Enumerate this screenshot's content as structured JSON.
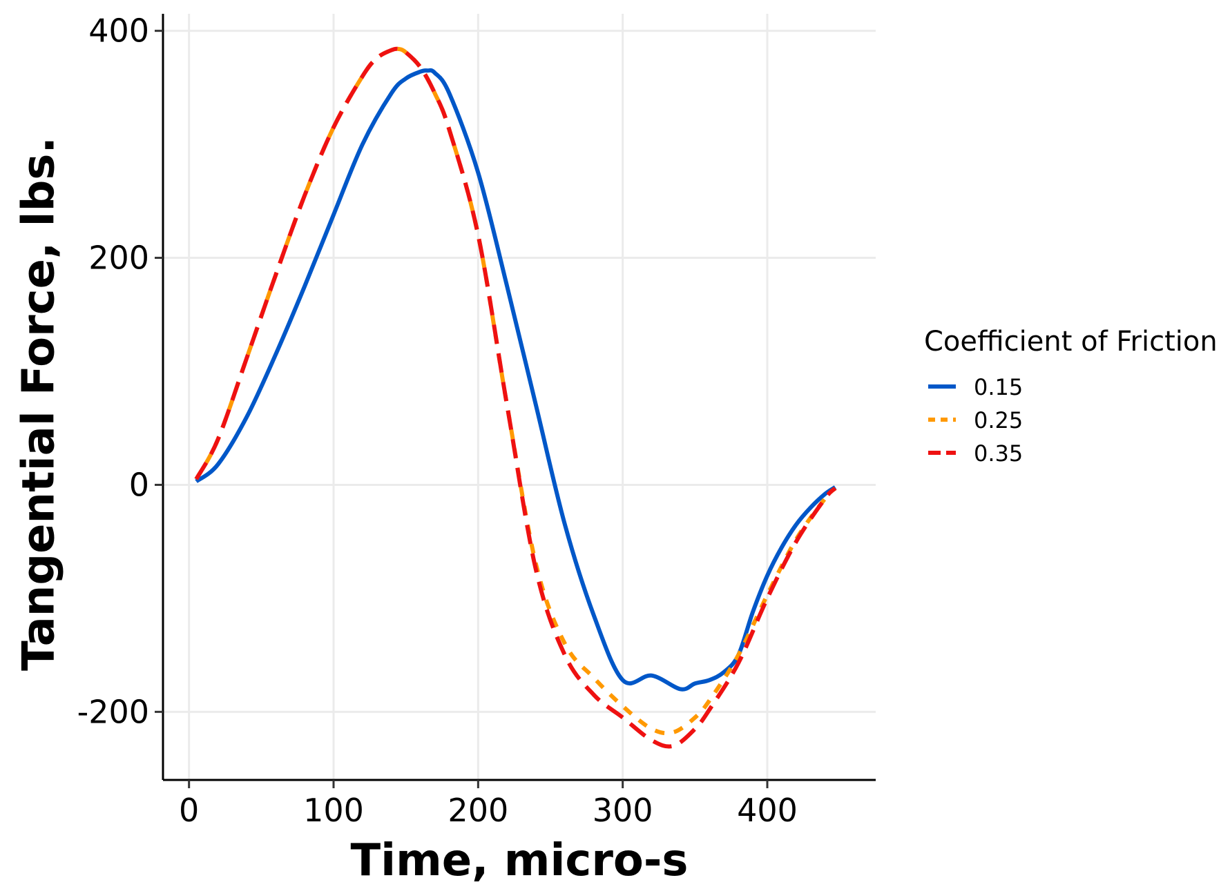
{
  "chart_data": {
    "type": "line",
    "title": "",
    "xlabel": "Time, micro-s",
    "ylabel": "Tangential Force, lbs.",
    "xlim": [
      -18,
      475
    ],
    "ylim": [
      -260,
      415
    ],
    "xticks": [
      0,
      100,
      200,
      300,
      400
    ],
    "yticks": [
      -200,
      0,
      200,
      400
    ],
    "xtick_labels": [
      "0",
      "100",
      "200",
      "300",
      "400"
    ],
    "ytick_labels": [
      "-200",
      "0",
      "200",
      "400"
    ],
    "grid": true,
    "legend": {
      "title": "Coefficient of Friction",
      "position": "right"
    },
    "series": [
      {
        "name": "0.15",
        "color": "#0057c8",
        "dash": "solid",
        "x": [
          5,
          20,
          40,
          60,
          80,
          100,
          120,
          140,
          150,
          160,
          165,
          170,
          180,
          200,
          220,
          240,
          260,
          280,
          300,
          320,
          340,
          350,
          360,
          370,
          380,
          390,
          400,
          410,
          420,
          430,
          440,
          447
        ],
        "y": [
          3,
          18,
          60,
          115,
          175,
          238,
          300,
          345,
          358,
          364,
          365,
          363,
          345,
          275,
          175,
          70,
          -35,
          -115,
          -172,
          -168,
          -180,
          -175,
          -172,
          -165,
          -150,
          -112,
          -80,
          -55,
          -35,
          -20,
          -8,
          -2
        ]
      },
      {
        "name": "0.25",
        "color": "#ff9900",
        "dash": "short-dash",
        "x": [
          5,
          20,
          40,
          60,
          80,
          100,
          120,
          130,
          140,
          145,
          150,
          160,
          170,
          180,
          200,
          220,
          240,
          260,
          280,
          300,
          320,
          335,
          350,
          360,
          380,
          400,
          420,
          440,
          447
        ],
        "y": [
          5,
          40,
          112,
          185,
          255,
          315,
          360,
          376,
          383,
          384,
          381,
          368,
          345,
          313,
          220,
          70,
          -70,
          -140,
          -170,
          -195,
          -215,
          -218,
          -205,
          -190,
          -150,
          -97,
          -48,
          -12,
          -3
        ],
        "labels": {
          "min": -218
        }
      },
      {
        "name": "0.35",
        "color": "#ee1111",
        "dash": "long-dash",
        "x": [
          5,
          20,
          40,
          60,
          80,
          100,
          120,
          130,
          140,
          145,
          150,
          160,
          170,
          180,
          200,
          220,
          240,
          260,
          280,
          300,
          320,
          335,
          350,
          360,
          380,
          400,
          420,
          440,
          447
        ],
        "y": [
          5,
          40,
          112,
          185,
          255,
          315,
          360,
          376,
          383,
          384,
          381,
          368,
          345,
          313,
          220,
          70,
          -75,
          -150,
          -185,
          -205,
          -225,
          -230,
          -215,
          -198,
          -157,
          -100,
          -50,
          -12,
          -3
        ]
      }
    ]
  }
}
